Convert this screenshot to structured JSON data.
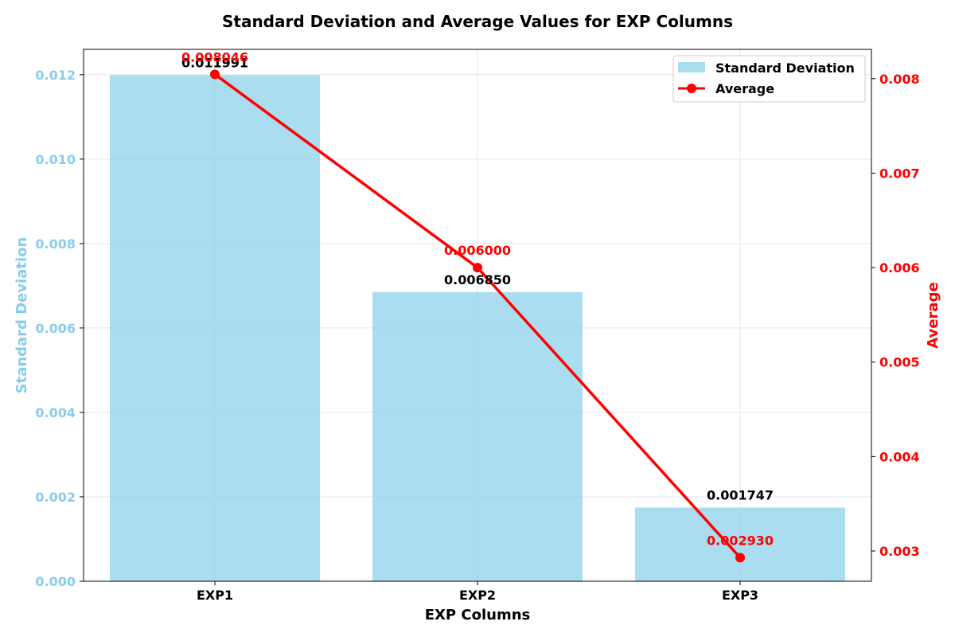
{
  "chart_data": {
    "type": "bar",
    "title": "Standard Deviation and Average Values for EXP Columns",
    "xlabel": "EXP Columns",
    "ylabel": "Standard Deviation",
    "y2label": "Average",
    "categories": [
      "EXP1",
      "EXP2",
      "EXP3"
    ],
    "series": [
      {
        "name": "Standard Deviation",
        "type": "bar",
        "axis": "left",
        "values": [
          0.011991,
          0.00685,
          0.001747
        ],
        "labels": [
          "0.011991",
          "0.006850",
          "0.001747"
        ],
        "color": "#87CEEB"
      },
      {
        "name": "Average",
        "type": "line",
        "axis": "right",
        "values": [
          0.008046,
          0.006,
          0.00293
        ],
        "labels": [
          "0.008046",
          "0.006000",
          "0.002930"
        ],
        "color": "#ff0000"
      }
    ],
    "ylim": [
      0,
      0.0126
    ],
    "y2lim": [
      0.00268,
      0.00831
    ],
    "yticks": [
      "0.000",
      "0.002",
      "0.004",
      "0.006",
      "0.008",
      "0.010",
      "0.012"
    ],
    "y2ticks": [
      "0.003",
      "0.004",
      "0.005",
      "0.006",
      "0.007",
      "0.008"
    ],
    "grid": true,
    "legend_position": "top-right",
    "left_axis_color": "#87CEEB",
    "right_axis_color": "#ff0000"
  }
}
